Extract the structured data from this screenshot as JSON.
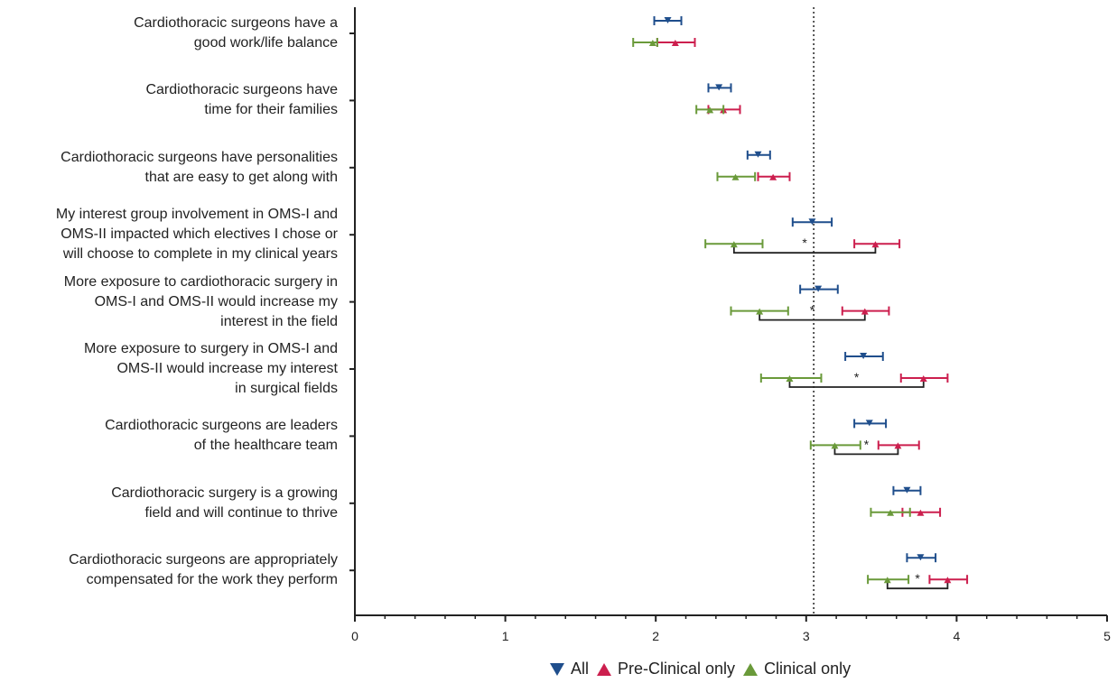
{
  "chart_data": {
    "type": "scatter",
    "subtype": "dot-with-error-bars",
    "orientation": "horizontal",
    "xlim": [
      0,
      5
    ],
    "x_ticks": [
      "0",
      "1",
      "2",
      "3",
      "4",
      "5"
    ],
    "reference_line": 3.05,
    "categories": [
      "Cardiothoracic surgeons have a\ngood work/life balance",
      "Cardiothoracic surgeons have\ntime for their families",
      "Cardiothoracic surgeons have personalities\nthat are easy to get along with",
      "My interest group involvement in OMS-I and\nOMS-II impacted which electives I chose or\nwill choose to complete in my clinical years",
      "More exposure to cardiothoracic surgery in\nOMS-I and OMS-II would increase my\ninterest in the field",
      "More exposure to surgery in OMS-I and\nOMS-II would increase my interest\nin surgical fields",
      "Cardiothoracic surgeons are leaders\nof the healthcare team",
      "Cardiothoracic surgery is a growing\nfield and will continue to thrive",
      "Cardiothoracic surgeons are appropriately\ncompensated for the work they perform"
    ],
    "series": [
      {
        "name": "All",
        "color": "#1f4e8c",
        "marker": "triangle-down",
        "values": [
          2.08,
          2.42,
          2.68,
          3.04,
          3.08,
          3.38,
          3.42,
          3.67,
          3.76
        ],
        "lower": [
          1.99,
          2.35,
          2.61,
          2.91,
          2.96,
          3.26,
          3.32,
          3.58,
          3.67
        ],
        "upper": [
          2.17,
          2.5,
          2.76,
          3.17,
          3.21,
          3.51,
          3.53,
          3.76,
          3.86
        ]
      },
      {
        "name": "Pre-Clinical only",
        "color": "#cc1f4e",
        "marker": "triangle-up",
        "values": [
          2.13,
          2.45,
          2.78,
          3.46,
          3.39,
          3.78,
          3.61,
          3.76,
          3.94
        ],
        "lower": [
          2.01,
          2.35,
          2.68,
          3.32,
          3.24,
          3.63,
          3.48,
          3.64,
          3.82
        ],
        "upper": [
          2.26,
          2.56,
          2.89,
          3.62,
          3.55,
          3.94,
          3.75,
          3.89,
          4.07
        ]
      },
      {
        "name": "Clinical only",
        "color": "#6a9a3a",
        "marker": "triangle-up",
        "values": [
          1.98,
          2.36,
          2.53,
          2.52,
          2.69,
          2.89,
          3.19,
          3.56,
          3.54
        ],
        "lower": [
          1.85,
          2.27,
          2.41,
          2.33,
          2.5,
          2.7,
          3.03,
          3.43,
          3.41
        ],
        "upper": [
          2.01,
          2.45,
          2.66,
          2.71,
          2.88,
          3.1,
          3.36,
          3.69,
          3.68
        ]
      }
    ],
    "significance": [
      {
        "category_index": 3,
        "from": 2.52,
        "to": 3.46,
        "label": "*"
      },
      {
        "category_index": 4,
        "from": 2.69,
        "to": 3.39,
        "label": "*"
      },
      {
        "category_index": 5,
        "from": 2.89,
        "to": 3.78,
        "label": "*"
      },
      {
        "category_index": 6,
        "from": 3.19,
        "to": 3.61,
        "label": "*"
      },
      {
        "category_index": 8,
        "from": 3.54,
        "to": 3.94,
        "label": "*"
      }
    ],
    "legend_position": "bottom-center"
  }
}
